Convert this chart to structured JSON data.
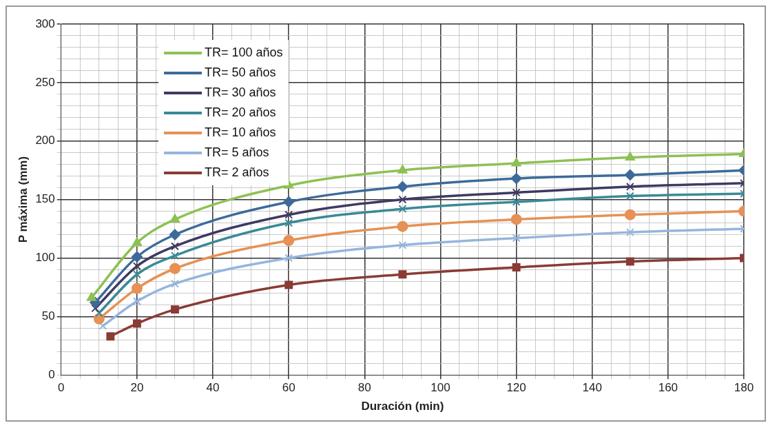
{
  "chart_data": {
    "type": "line",
    "xlabel": "Duración (min)",
    "ylabel": "P máxima (mm)",
    "xlim": [
      0,
      180
    ],
    "ylim": [
      0,
      300
    ],
    "xticks": [
      0,
      {
        "value": 5,
        "label": null
      },
      {
        "value": 10,
        "label": null
      },
      {
        "value": 15,
        "label": null
      },
      20,
      {
        "value": 25,
        "label": null
      },
      {
        "value": 30,
        "label": null
      },
      {
        "value": 35,
        "label": null
      },
      40,
      {
        "value": 45,
        "label": null
      },
      {
        "value": 50,
        "label": null
      },
      {
        "value": 55,
        "label": null
      },
      60,
      {
        "value": 65,
        "label": null
      },
      {
        "value": 70,
        "label": null
      },
      {
        "value": 75,
        "label": null
      },
      80,
      {
        "value": 85,
        "label": null
      },
      {
        "value": 90,
        "label": null
      },
      {
        "value": 95,
        "label": null
      },
      100,
      {
        "value": 105,
        "label": null
      },
      {
        "value": 110,
        "label": null
      },
      {
        "value": 115,
        "label": null
      },
      120,
      {
        "value": 125,
        "label": null
      },
      {
        "value": 130,
        "label": null
      },
      {
        "value": 135,
        "label": null
      },
      140,
      {
        "value": 145,
        "label": null
      },
      {
        "value": 150,
        "label": null
      },
      {
        "value": 155,
        "label": null
      },
      160,
      {
        "value": 165,
        "label": null
      },
      {
        "value": 170,
        "label": null
      },
      {
        "value": 175,
        "label": null
      },
      180
    ],
    "yticks": [
      0,
      {
        "value": 10,
        "label": null
      },
      {
        "value": 20,
        "label": null
      },
      {
        "value": 30,
        "label": null
      },
      {
        "value": 40,
        "label": null
      },
      50,
      {
        "value": 60,
        "label": null
      },
      {
        "value": 70,
        "label": null
      },
      {
        "value": 80,
        "label": null
      },
      {
        "value": 90,
        "label": null
      },
      100,
      {
        "value": 110,
        "label": null
      },
      {
        "value": 120,
        "label": null
      },
      {
        "value": 130,
        "label": null
      },
      {
        "value": 140,
        "label": null
      },
      150,
      {
        "value": 160,
        "label": null
      },
      {
        "value": 170,
        "label": null
      },
      {
        "value": 180,
        "label": null
      },
      {
        "value": 190,
        "label": null
      },
      200,
      {
        "value": 210,
        "label": null
      },
      {
        "value": 220,
        "label": null
      },
      {
        "value": 230,
        "label": null
      },
      {
        "value": 240,
        "label": null
      },
      250,
      {
        "value": 260,
        "label": null
      },
      {
        "value": 270,
        "label": null
      },
      {
        "value": 280,
        "label": null
      },
      {
        "value": 290,
        "label": null
      },
      300
    ],
    "grid": true,
    "legend": "top left",
    "line_style": "solid",
    "series": [
      {
        "name": "TR= 100 años",
        "color": "#8dc153",
        "marker": "triangle",
        "x": [
          8,
          20,
          30,
          60,
          90,
          120,
          150,
          180
        ],
        "values": [
          66,
          113,
          133,
          162,
          175,
          181,
          186,
          189
        ]
      },
      {
        "name": "TR= 50 años",
        "color": "#3d6a9a",
        "marker": "diamond",
        "x": [
          9,
          20,
          30,
          60,
          90,
          120,
          150,
          180
        ],
        "values": [
          62,
          101,
          120,
          148,
          161,
          168,
          171,
          175
        ]
      },
      {
        "name": "TR= 30 años",
        "color": "#3e3a62",
        "marker": "cross",
        "x": [
          9,
          20,
          30,
          60,
          90,
          120,
          150,
          180
        ],
        "values": [
          57,
          93,
          110,
          137,
          150,
          156,
          161,
          164
        ]
      },
      {
        "name": "TR= 20 años",
        "color": "#3a8a96",
        "marker": "cross",
        "x": [
          10,
          20,
          30,
          60,
          90,
          120,
          150,
          180
        ],
        "values": [
          53,
          86,
          102,
          130,
          142,
          148,
          153,
          155
        ]
      },
      {
        "name": "TR= 10 años",
        "color": "#e69155",
        "marker": "circle",
        "x": [
          10,
          20,
          30,
          60,
          90,
          120,
          150,
          180
        ],
        "values": [
          48,
          74,
          91,
          115,
          127,
          133,
          137,
          140
        ]
      },
      {
        "name": "TR= 5 años",
        "color": "#95b5dd",
        "marker": "cross",
        "x": [
          11,
          20,
          30,
          60,
          90,
          120,
          150,
          180
        ],
        "values": [
          42,
          63,
          78,
          100,
          111,
          117,
          122,
          125
        ]
      },
      {
        "name": "TR= 2 años",
        "color": "#8a3b34",
        "marker": "square",
        "x": [
          13,
          20,
          30,
          60,
          90,
          120,
          150,
          180
        ],
        "values": [
          33,
          44,
          56,
          77,
          86,
          92,
          97,
          100
        ]
      }
    ]
  }
}
